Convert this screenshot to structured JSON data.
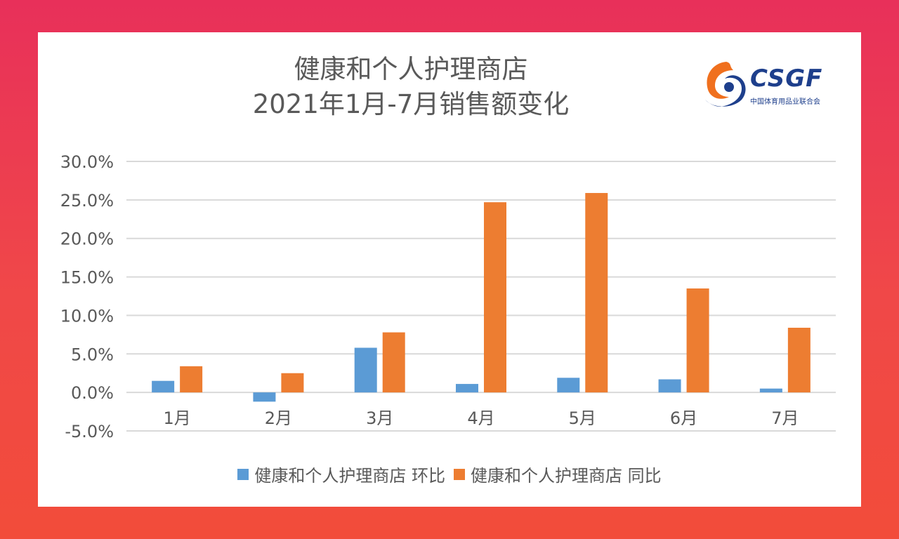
{
  "colors": {
    "mom": "#5b9bd5",
    "yoy": "#ed7d31",
    "grid": "#d9d9d9",
    "text": "#595959"
  },
  "logo": {
    "word": "CSGF",
    "sub": "中国体育用品业联合会"
  },
  "chart_data": {
    "type": "bar",
    "title_lines": [
      "健康和个人护理商店",
      "2021年1月-7月销售额变化"
    ],
    "categories": [
      "1月",
      "2月",
      "3月",
      "4月",
      "5月",
      "6月",
      "7月"
    ],
    "series": [
      {
        "name": "健康和个人护理商店 环比",
        "values": [
          1.5,
          -1.2,
          5.8,
          1.1,
          1.9,
          1.7,
          0.5
        ]
      },
      {
        "name": "健康和个人护理商店 同比",
        "values": [
          3.4,
          2.5,
          7.8,
          24.7,
          25.9,
          13.5,
          8.4
        ]
      }
    ],
    "ylim": [
      -5,
      30
    ],
    "yticks": [
      30,
      25,
      20,
      15,
      10,
      5,
      0,
      -5
    ],
    "ytick_labels": [
      "30.0%",
      "25.0%",
      "20.0%",
      "15.0%",
      "10.0%",
      "5.0%",
      "0.0%",
      "-5.0%"
    ],
    "grid": true,
    "legend": "bottom"
  }
}
